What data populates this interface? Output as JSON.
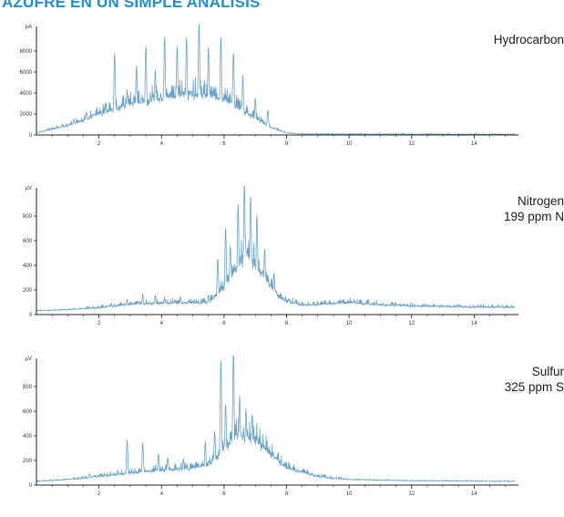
{
  "page": {
    "title": "AZUFRE EN UN SIMPLE ANÁLISIS"
  },
  "colors": {
    "trace": "#6aa3c8",
    "axis": "#222222",
    "title": "#1f8fd6"
  },
  "chart_data": [
    {
      "type": "line",
      "label_lines": [
        "Hydrocarbon"
      ],
      "unit_label": "pA",
      "xlim": [
        0,
        15.3
      ],
      "ylim": [
        0,
        10000
      ],
      "x_ticks": [
        2,
        4,
        6,
        8,
        10,
        12,
        14
      ],
      "y_ticks": [
        0,
        2000,
        4000,
        6000,
        8000
      ],
      "y_tick_labels": [
        "0",
        "2000",
        "4000",
        "6000",
        "8000"
      ],
      "baseline": 60,
      "envelope": [
        [
          0,
          200
        ],
        [
          1,
          900
        ],
        [
          2,
          2000
        ],
        [
          3,
          3000
        ],
        [
          4,
          3600
        ],
        [
          5,
          4000
        ],
        [
          6,
          3500
        ],
        [
          6.8,
          2000
        ],
        [
          7.5,
          700
        ],
        [
          8,
          200
        ],
        [
          8.5,
          80
        ],
        [
          15.3,
          60
        ]
      ],
      "peaks": [
        [
          1.2,
          1300
        ],
        [
          1.6,
          1900
        ],
        [
          2.2,
          2600
        ],
        [
          2.5,
          7300
        ],
        [
          2.9,
          3800
        ],
        [
          3.2,
          6000
        ],
        [
          3.5,
          7800
        ],
        [
          3.8,
          5500
        ],
        [
          4.1,
          8600
        ],
        [
          4.5,
          7700
        ],
        [
          4.8,
          8500
        ],
        [
          5.2,
          9800
        ],
        [
          5.5,
          7600
        ],
        [
          5.9,
          8600
        ],
        [
          6.3,
          7300
        ],
        [
          6.6,
          5200
        ],
        [
          7.0,
          3200
        ],
        [
          7.4,
          2200
        ]
      ]
    },
    {
      "type": "line",
      "label_lines": [
        "Nitrogen",
        "199 ppm N"
      ],
      "unit_label": "µV",
      "xlim": [
        0,
        15.3
      ],
      "ylim": [
        0,
        1000
      ],
      "x_ticks": [
        2,
        4,
        6,
        8,
        10,
        12,
        14
      ],
      "y_ticks": [
        0,
        200,
        400,
        600,
        800
      ],
      "y_tick_labels": [
        "0",
        "200",
        "400",
        "600",
        "800"
      ],
      "baseline": 30,
      "envelope": [
        [
          0,
          30
        ],
        [
          1,
          40
        ],
        [
          2,
          55
        ],
        [
          3,
          85
        ],
        [
          4,
          95
        ],
        [
          5,
          95
        ],
        [
          5.5,
          100
        ],
        [
          6,
          220
        ],
        [
          6.7,
          500
        ],
        [
          7.3,
          300
        ],
        [
          7.8,
          130
        ],
        [
          8.5,
          75
        ],
        [
          9.5,
          90
        ],
        [
          10,
          100
        ],
        [
          11,
          80
        ],
        [
          12,
          70
        ],
        [
          13,
          65
        ],
        [
          14,
          60
        ],
        [
          15.3,
          60
        ]
      ],
      "peaks": [
        [
          2.4,
          80
        ],
        [
          2.9,
          110
        ],
        [
          3.4,
          150
        ],
        [
          3.8,
          140
        ],
        [
          4.1,
          120
        ],
        [
          4.6,
          130
        ],
        [
          5.5,
          140
        ],
        [
          5.8,
          420
        ],
        [
          6.05,
          660
        ],
        [
          6.2,
          500
        ],
        [
          6.45,
          820
        ],
        [
          6.65,
          970
        ],
        [
          6.85,
          870
        ],
        [
          7.05,
          730
        ],
        [
          7.3,
          470
        ],
        [
          7.6,
          300
        ]
      ]
    },
    {
      "type": "line",
      "label_lines": [
        "Sulfur",
        "325 ppm S"
      ],
      "unit_label": "µV",
      "xlim": [
        0,
        15.3
      ],
      "ylim": [
        0,
        1000
      ],
      "x_ticks": [
        2,
        4,
        6,
        8,
        10,
        12,
        14
      ],
      "y_ticks": [
        0,
        200,
        400,
        600,
        800
      ],
      "y_tick_labels": [
        "0",
        "200",
        "400",
        "600",
        "800"
      ],
      "baseline": 30,
      "envelope": [
        [
          0,
          30
        ],
        [
          1,
          45
        ],
        [
          2,
          70
        ],
        [
          3,
          100
        ],
        [
          4,
          120
        ],
        [
          5,
          140
        ],
        [
          5.6,
          180
        ],
        [
          6,
          300
        ],
        [
          6.5,
          420
        ],
        [
          7,
          380
        ],
        [
          7.5,
          250
        ],
        [
          8,
          140
        ],
        [
          9,
          70
        ],
        [
          10,
          45
        ],
        [
          12,
          35
        ],
        [
          15.3,
          30
        ]
      ],
      "peaks": [
        [
          1.7,
          80
        ],
        [
          2.6,
          100
        ],
        [
          2.9,
          350
        ],
        [
          3.4,
          320
        ],
        [
          3.9,
          230
        ],
        [
          4.2,
          200
        ],
        [
          4.7,
          190
        ],
        [
          5.4,
          320
        ],
        [
          5.7,
          400
        ],
        [
          5.9,
          960
        ],
        [
          6.05,
          600
        ],
        [
          6.3,
          1000
        ],
        [
          6.5,
          640
        ],
        [
          6.7,
          540
        ],
        [
          6.9,
          500
        ]
      ]
    }
  ]
}
